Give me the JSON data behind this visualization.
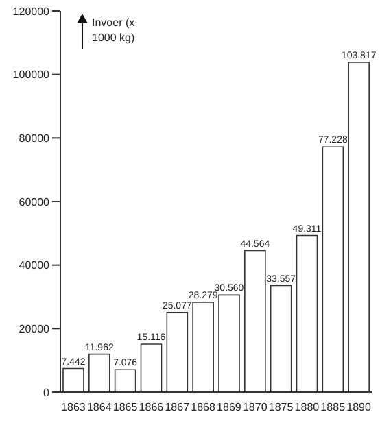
{
  "chart_data": {
    "type": "bar",
    "ylabel": "Invoer (x 1000 kg)",
    "categories": [
      "1863",
      "1864",
      "1865",
      "1866",
      "1867",
      "1868",
      "1869",
      "1870",
      "1875",
      "1880",
      "1885",
      "1890"
    ],
    "values": [
      7442,
      11962,
      7076,
      15116,
      25077,
      28279,
      30560,
      44564,
      33557,
      49311,
      77228,
      103817
    ],
    "value_labels": [
      "7.442",
      "11.962",
      "7.076",
      "15.116",
      "25.077",
      "28.279",
      "30.560",
      "44.564",
      "33.557",
      "49.311",
      "77.228",
      "103.817"
    ],
    "color": "#ffffff",
    "ylim": [
      0,
      120000
    ],
    "yticks": [
      0,
      20000,
      40000,
      60000,
      80000,
      100000,
      120000
    ],
    "grid": false,
    "legend": false
  }
}
